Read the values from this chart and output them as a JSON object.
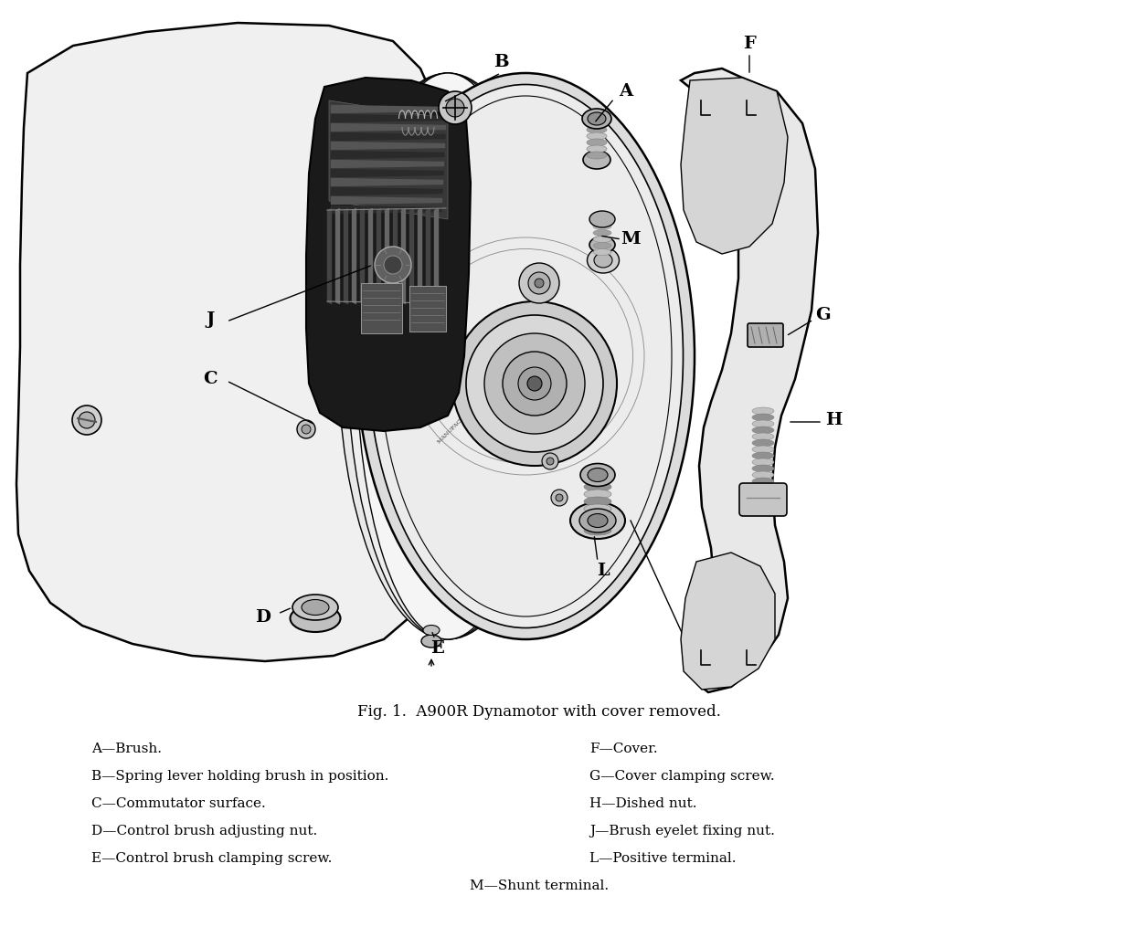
{
  "title": "Fig. 1.  A900R Dynamotor with cover removed.",
  "bg_color": "#ffffff",
  "fig_width": 12.54,
  "fig_height": 10.38,
  "dpi": 100,
  "caption_items_left": [
    "A—Brush.",
    "B—Spring lever holding brush in position.",
    "C—Commutator surface.",
    "D—Control brush adjusting nut.",
    "E—Control brush clamping screw."
  ],
  "caption_items_right": [
    "F—Cover.",
    "G—Cover clamping screw.",
    "H—Dished nut.",
    "J—Brush eyelet fixing nut.",
    "L—Positive terminal."
  ],
  "caption_center": "M—Shunt terminal.",
  "label_color": "#000000",
  "line_color": "#000000",
  "font_size_caption": 11,
  "font_size_labels": 13,
  "font_size_title": 12
}
